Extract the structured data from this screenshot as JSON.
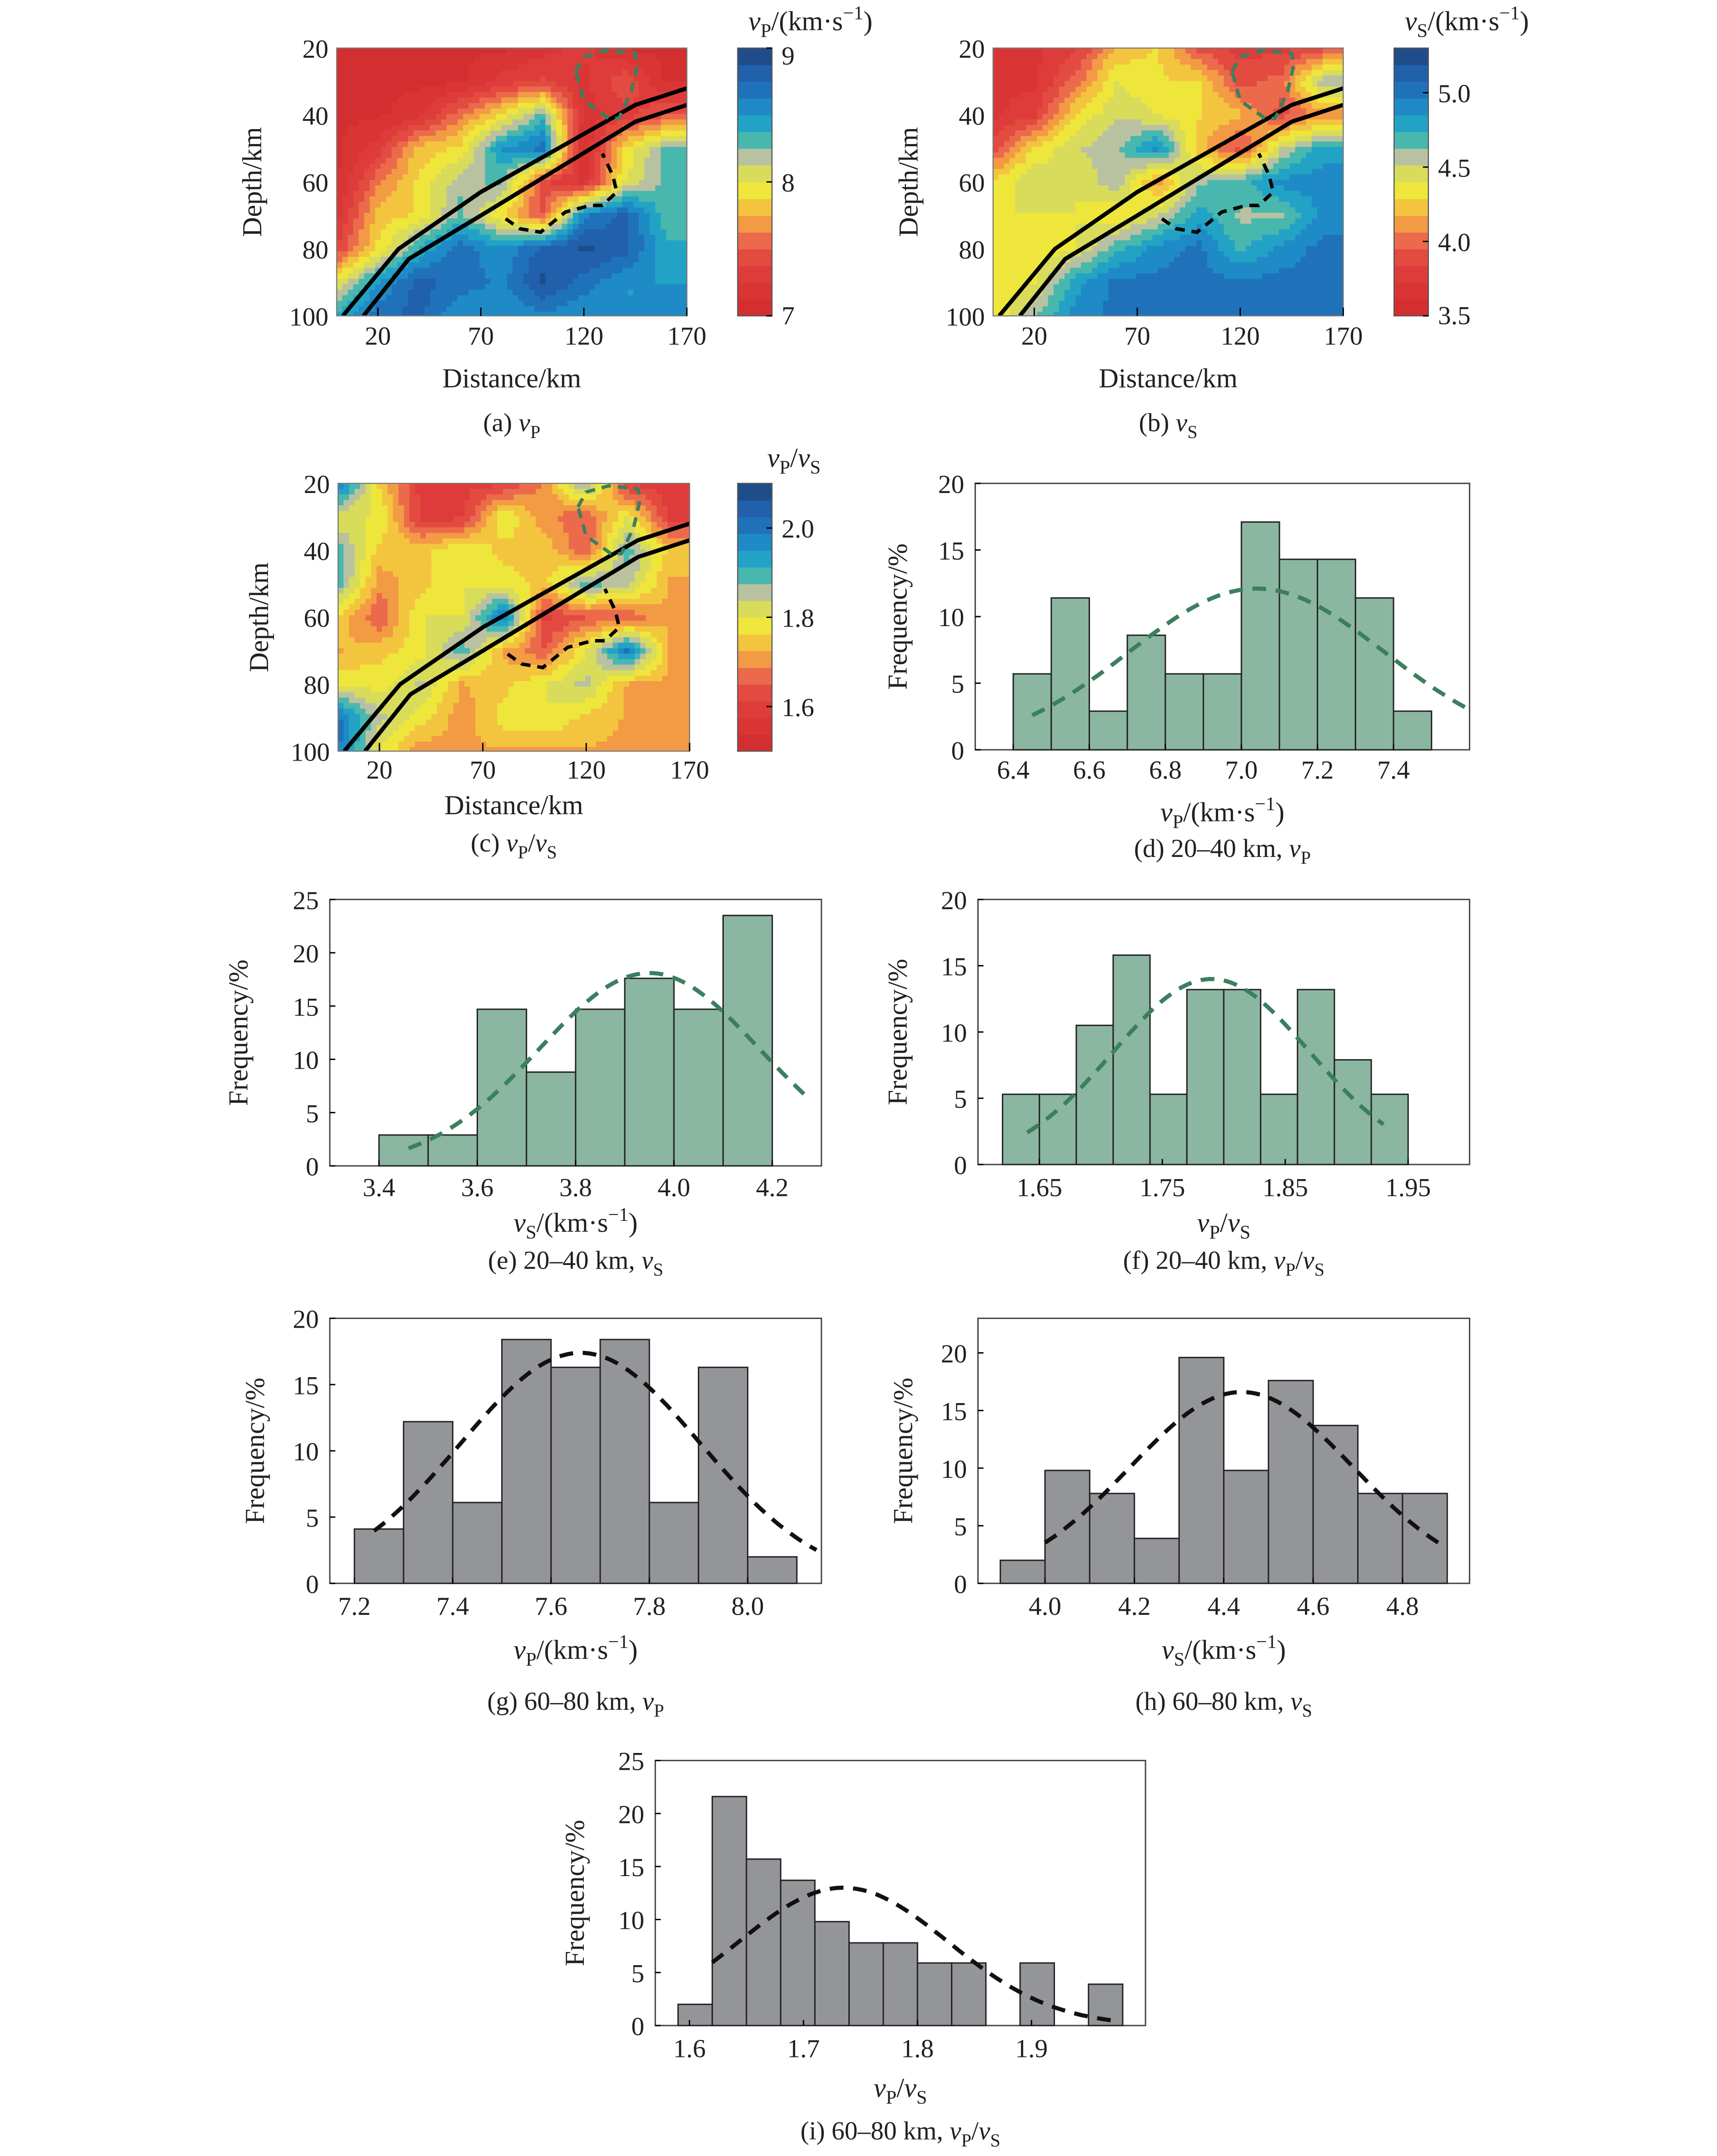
{
  "colors": {
    "bar_green": "#8bb6a1",
    "bar_grey": "#939598",
    "curve_green": "#3b7f5e",
    "curve_black": "#111111",
    "bar_edge": "#222222",
    "colormap": [
      "#d42f30",
      "#d93535",
      "#de3c3b",
      "#e34a40",
      "#ec6a4c",
      "#f39a44",
      "#f3c53f",
      "#efe63c",
      "#d8dc5a",
      "#b9c2a0",
      "#48b8ae",
      "#22a3c6",
      "#1f8bc6",
      "#1f72ba",
      "#2160ab",
      "#1f4d8a"
    ]
  },
  "chart_data": [
    {
      "type": "heatmap",
      "ylabel": "Depth/km",
      "xlabel": "Distance/km",
      "xlim": [
        0,
        170
      ],
      "ylim": [
        20,
        100
      ],
      "y_inverted": true,
      "xticks": [
        20,
        70,
        120,
        170
      ],
      "yticks": [
        20,
        40,
        60,
        80,
        100
      ],
      "colorbar": {
        "title": [
          [
            "v",
            "i"
          ],
          [
            "P",
            "sub"
          ],
          [
            "/(km·s",
            ""
          ],
          [
            "−1",
            "sup"
          ],
          [
            ")",
            ""
          ]
        ],
        "range": [
          7,
          9
        ],
        "ticks": [
          "7",
          "8",
          "9"
        ],
        "tick_values": [
          7,
          8,
          9
        ]
      },
      "caption": [
        [
          "(a) ",
          ""
        ],
        [
          "v",
          "i"
        ],
        [
          "P",
          "sub"
        ]
      ],
      "grid_x": [
        0,
        20,
        40,
        60,
        80,
        100,
        120,
        140,
        160
      ],
      "grid_depth": [
        20,
        30,
        40,
        50,
        60,
        70,
        80,
        90,
        100
      ],
      "values": [
        [
          7.1,
          7.1,
          7.1,
          7.1,
          7.1,
          7.2,
          7.3,
          7.1,
          7.1
        ],
        [
          7.1,
          7.1,
          7.1,
          7.1,
          7.3,
          7.4,
          7.2,
          7.5,
          7.1
        ],
        [
          7.1,
          7.1,
          7.2,
          7.6,
          7.9,
          8.3,
          7.2,
          7.3,
          7.5
        ],
        [
          7.1,
          7.3,
          7.8,
          7.9,
          8.5,
          8.7,
          7.1,
          7.9,
          8.3
        ],
        [
          7.1,
          7.6,
          7.9,
          8.2,
          8.3,
          7.4,
          7.2,
          8.0,
          8.3
        ],
        [
          7.2,
          7.8,
          7.9,
          8.3,
          7.9,
          7.5,
          8.6,
          8.8,
          8.3
        ],
        [
          7.4,
          7.9,
          8.4,
          8.7,
          8.5,
          8.8,
          8.9,
          8.8,
          8.4
        ],
        [
          8.0,
          8.5,
          8.8,
          8.7,
          8.6,
          8.9,
          8.7,
          8.5,
          8.5
        ],
        [
          8.4,
          8.7,
          8.8,
          8.5,
          8.5,
          8.6,
          8.5,
          8.5,
          8.5
        ]
      ]
    },
    {
      "type": "heatmap",
      "ylabel": "Depth/km",
      "xlabel": "Distance/km",
      "xlim": [
        0,
        170
      ],
      "ylim": [
        20,
        100
      ],
      "y_inverted": true,
      "xticks": [
        20,
        70,
        120,
        170
      ],
      "yticks": [
        20,
        40,
        60,
        80,
        100
      ],
      "colorbar": {
        "title": [
          [
            "v",
            "i"
          ],
          [
            "S",
            "sub"
          ],
          [
            "/(km·s",
            ""
          ],
          [
            "−1",
            "sup"
          ],
          [
            ")",
            ""
          ]
        ],
        "range": [
          3.5,
          5.3
        ],
        "ticks": [
          "3.5",
          "4.0",
          "4.5",
          "5.0"
        ],
        "tick_values": [
          3.5,
          4.0,
          4.5,
          5.0
        ]
      },
      "caption": [
        [
          "(b) ",
          ""
        ],
        [
          "v",
          "i"
        ],
        [
          "S",
          "sub"
        ]
      ],
      "grid_x": [
        0,
        20,
        40,
        60,
        80,
        100,
        120,
        140,
        160
      ],
      "grid_depth": [
        20,
        30,
        40,
        50,
        60,
        70,
        80,
        90,
        100
      ],
      "values": [
        [
          3.7,
          3.7,
          3.8,
          4.2,
          4.3,
          3.9,
          3.8,
          3.8,
          3.9
        ],
        [
          3.7,
          3.7,
          4.0,
          4.4,
          4.3,
          4.3,
          3.9,
          4.0,
          4.6
        ],
        [
          3.7,
          3.8,
          4.3,
          4.5,
          4.4,
          4.3,
          4.2,
          3.9,
          4.1
        ],
        [
          3.9,
          4.3,
          4.5,
          4.6,
          4.9,
          4.2,
          3.9,
          4.5,
          4.8
        ],
        [
          4.3,
          4.5,
          4.4,
          4.6,
          4.1,
          4.6,
          4.7,
          4.9,
          4.9
        ],
        [
          4.4,
          4.4,
          4.4,
          4.3,
          4.5,
          4.8,
          4.6,
          4.6,
          4.9
        ],
        [
          4.4,
          4.3,
          4.4,
          4.7,
          4.9,
          5.0,
          4.7,
          4.9,
          5.0
        ],
        [
          4.3,
          4.4,
          4.8,
          5.0,
          5.0,
          5.0,
          5.0,
          5.0,
          5.0
        ],
        [
          4.3,
          4.6,
          4.9,
          5.0,
          5.0,
          5.0,
          5.0,
          5.0,
          5.0
        ]
      ]
    },
    {
      "type": "heatmap",
      "ylabel": "Depth/km",
      "xlabel": "Distance/km",
      "xlim": [
        0,
        170
      ],
      "ylim": [
        20,
        100
      ],
      "y_inverted": true,
      "xticks": [
        20,
        70,
        120,
        170
      ],
      "yticks": [
        20,
        40,
        60,
        80,
        100
      ],
      "colorbar": {
        "title": [
          [
            "v",
            "i"
          ],
          [
            "P",
            "sub"
          ],
          [
            "/",
            ""
          ],
          [
            "v",
            "i"
          ],
          [
            "S",
            "sub"
          ]
        ],
        "range": [
          1.5,
          2.1
        ],
        "ticks": [
          "1.6",
          "1.8",
          "2.0"
        ],
        "tick_values": [
          1.6,
          1.8,
          2.0
        ]
      },
      "caption": [
        [
          "(c) ",
          ""
        ],
        [
          "v",
          "i"
        ],
        [
          "P",
          "sub"
        ],
        [
          "/",
          ""
        ],
        [
          "v",
          "i"
        ],
        [
          "S",
          "sub"
        ]
      ],
      "grid_x": [
        0,
        20,
        40,
        60,
        80,
        100,
        120,
        140,
        160
      ],
      "grid_depth": [
        20,
        30,
        40,
        50,
        60,
        70,
        80,
        90,
        100
      ],
      "values": [
        [
          2.0,
          1.75,
          1.6,
          1.6,
          1.6,
          1.7,
          1.9,
          1.6,
          1.6
        ],
        [
          1.8,
          1.8,
          1.6,
          1.6,
          1.8,
          1.7,
          1.65,
          1.8,
          1.6
        ],
        [
          1.9,
          1.75,
          1.75,
          1.8,
          1.75,
          1.75,
          1.65,
          1.9,
          1.75
        ],
        [
          1.9,
          1.7,
          1.75,
          1.8,
          1.78,
          1.75,
          1.9,
          1.85,
          1.72
        ],
        [
          1.75,
          1.65,
          1.8,
          1.8,
          2.0,
          1.6,
          1.65,
          1.65,
          1.72
        ],
        [
          1.72,
          1.75,
          1.78,
          1.9,
          1.72,
          1.65,
          1.8,
          2.0,
          1.72
        ],
        [
          1.8,
          1.78,
          1.85,
          1.72,
          1.75,
          1.8,
          1.85,
          1.72,
          1.72
        ],
        [
          2.0,
          1.85,
          1.78,
          1.7,
          1.78,
          1.8,
          1.75,
          1.72,
          1.72
        ],
        [
          2.0,
          1.8,
          1.7,
          1.72,
          1.72,
          1.72,
          1.72,
          1.72,
          1.72
        ]
      ]
    },
    {
      "type": "bar",
      "histogram": true,
      "ylabel": "Frequency/%",
      "xlabel": [
        [
          "v",
          "i"
        ],
        [
          "P",
          "sub"
        ],
        [
          "/(km·s",
          ""
        ],
        [
          "−1",
          "sup"
        ],
        [
          ")",
          ""
        ]
      ],
      "caption": [
        [
          "(d) 20–40 km, ",
          ""
        ],
        [
          "v",
          "i"
        ],
        [
          "P",
          "sub"
        ]
      ],
      "bin_start": 6.4,
      "bin_width": 0.1,
      "values": [
        5.7,
        11.4,
        2.9,
        8.6,
        5.7,
        5.7,
        17.1,
        14.3,
        14.3,
        11.4,
        2.9
      ],
      "xlim": [
        6.3,
        7.6
      ],
      "ylim": [
        0,
        20
      ],
      "xticks": [
        "6.4",
        "6.6",
        "6.8",
        "7.0",
        "7.2",
        "7.4"
      ],
      "yticks": [
        "0",
        "5",
        "10",
        "15",
        "20"
      ],
      "fit": {
        "type": "normal",
        "mean": 7.04,
        "sd": 0.336,
        "peak": 12.1,
        "from": 6.45,
        "to": 7.6
      },
      "bar_color": "green"
    },
    {
      "type": "bar",
      "histogram": true,
      "ylabel": "Frequency/%",
      "xlabel": [
        [
          "v",
          "i"
        ],
        [
          "S",
          "sub"
        ],
        [
          "/(km·s",
          ""
        ],
        [
          "−1",
          "sup"
        ],
        [
          ")",
          ""
        ]
      ],
      "caption": [
        [
          "(e) 20–40 km, ",
          ""
        ],
        [
          "v",
          "i"
        ],
        [
          "S",
          "sub"
        ]
      ],
      "bin_start": 3.4,
      "bin_width": 0.1,
      "values": [
        2.9,
        2.9,
        14.7,
        8.8,
        14.7,
        17.6,
        14.7,
        23.5
      ],
      "xlim": [
        3.3,
        4.3
      ],
      "ylim": [
        0,
        25
      ],
      "xticks": [
        "3.4",
        "3.6",
        "3.8",
        "4.0",
        "4.2"
      ],
      "yticks": [
        "0",
        "5",
        "10",
        "15",
        "20",
        "25"
      ],
      "fit": {
        "type": "normal",
        "mean": 3.95,
        "sd": 0.224,
        "peak": 18.1,
        "from": 3.46,
        "to": 4.27
      },
      "bar_color": "green"
    },
    {
      "type": "bar",
      "histogram": true,
      "ylabel": "Frequency/%",
      "xlabel": [
        [
          "v",
          "i"
        ],
        [
          "P",
          "sub"
        ],
        [
          "/",
          ""
        ],
        [
          "v",
          "i"
        ],
        [
          "S",
          "sub"
        ]
      ],
      "caption": [
        [
          "(f) 20–40 km, ",
          ""
        ],
        [
          "v",
          "i"
        ],
        [
          "P",
          "sub"
        ],
        [
          "/",
          ""
        ],
        [
          "v",
          "i"
        ],
        [
          "S",
          "sub"
        ]
      ],
      "bin_start": 1.62,
      "bin_width": 0.03,
      "values": [
        5.3,
        5.3,
        10.5,
        15.8,
        5.3,
        13.2,
        13.2,
        5.3,
        13.2,
        7.9,
        5.3
      ],
      "xlim": [
        1.6,
        2.0
      ],
      "ylim": [
        0,
        20
      ],
      "xticks": [
        "1.65",
        "1.75",
        "1.85",
        "1.95"
      ],
      "yticks": [
        "0",
        "5",
        "10",
        "15",
        "20"
      ],
      "fit": {
        "type": "normal",
        "mean": 1.79,
        "sd": 0.08,
        "peak": 14.0,
        "from": 1.64,
        "to": 1.93
      },
      "bar_color": "green"
    },
    {
      "type": "bar",
      "histogram": true,
      "ylabel": "Frequency/%",
      "xlabel": [
        [
          "v",
          "i"
        ],
        [
          "P",
          "sub"
        ],
        [
          "/(km·s",
          ""
        ],
        [
          "−1",
          "sup"
        ],
        [
          ")",
          ""
        ]
      ],
      "caption": [
        [
          "(g) 60–80 km, ",
          ""
        ],
        [
          "v",
          "i"
        ],
        [
          "P",
          "sub"
        ]
      ],
      "bin_start": 7.2,
      "bin_width": 0.1,
      "values": [
        4.1,
        12.2,
        6.1,
        18.4,
        16.3,
        18.4,
        6.1,
        16.3,
        2.0
      ],
      "xlim": [
        7.15,
        8.15
      ],
      "ylim": [
        0,
        20
      ],
      "xticks": [
        "7.2",
        "7.4",
        "7.6",
        "7.8",
        "8.0"
      ],
      "yticks": [
        "0",
        "5",
        "10",
        "15",
        "20"
      ],
      "fit": {
        "type": "normal",
        "mean": 7.66,
        "sd": 0.244,
        "peak": 17.4,
        "from": 7.24,
        "to": 8.14
      },
      "bar_color": "grey"
    },
    {
      "type": "bar",
      "histogram": true,
      "ylabel": "Frequency/%",
      "xlabel": [
        [
          "v",
          "i"
        ],
        [
          "S",
          "sub"
        ],
        [
          "/(km·s",
          ""
        ],
        [
          "−1",
          "sup"
        ],
        [
          ")",
          ""
        ]
      ],
      "caption": [
        [
          "(h) 60–80 km, ",
          ""
        ],
        [
          "v",
          "i"
        ],
        [
          "S",
          "sub"
        ]
      ],
      "bin_start": 3.9,
      "bin_width": 0.1,
      "values": [
        2.0,
        9.8,
        7.8,
        3.9,
        19.6,
        9.8,
        17.6,
        13.7,
        7.8,
        7.8
      ],
      "xlim": [
        3.85,
        4.95
      ],
      "ylim": [
        0,
        23
      ],
      "xticks": [
        "4.0",
        "4.2",
        "4.4",
        "4.6",
        "4.8"
      ],
      "yticks": [
        "0",
        "5",
        "10",
        "15",
        "20"
      ],
      "fit": {
        "type": "normal",
        "mean": 4.44,
        "sd": 0.25,
        "peak": 16.6,
        "from": 4.0,
        "to": 4.88
      },
      "bar_color": "grey"
    },
    {
      "type": "bar",
      "histogram": true,
      "ylabel": "Frequency/%",
      "xlabel": [
        [
          "v",
          "i"
        ],
        [
          "P",
          "sub"
        ],
        [
          "/",
          ""
        ],
        [
          "v",
          "i"
        ],
        [
          "S",
          "sub"
        ]
      ],
      "caption": [
        [
          "(i) 60–80 km, ",
          ""
        ],
        [
          "v",
          "i"
        ],
        [
          "P",
          "sub"
        ],
        [
          "/",
          ""
        ],
        [
          "v",
          "i"
        ],
        [
          "S",
          "sub"
        ]
      ],
      "bin_start": 1.59,
      "bin_width": 0.03,
      "values": [
        2.0,
        21.6,
        15.7,
        13.7,
        9.8,
        7.8,
        7.8,
        5.9,
        5.9,
        0,
        5.9,
        0,
        3.9
      ],
      "xlim": [
        1.57,
        2.0
      ],
      "ylim": [
        0,
        25
      ],
      "xticks": [
        "1.6",
        "1.7",
        "1.8",
        "1.9"
      ],
      "yticks": [
        "0",
        "5",
        "10",
        "15",
        "20",
        "25"
      ],
      "fit": {
        "type": "normal",
        "mean": 1.735,
        "sd": 0.092,
        "peak": 13.0,
        "from": 1.62,
        "to": 1.97
      },
      "bar_color": "grey"
    }
  ],
  "overlays": {
    "slab_top": [
      [
        3,
        100
      ],
      [
        30,
        80
      ],
      [
        70,
        63
      ],
      [
        145,
        37
      ],
      [
        170,
        32
      ]
    ],
    "slab_bottom": [
      [
        13,
        100
      ],
      [
        35,
        83
      ],
      [
        70,
        70
      ],
      [
        145,
        42
      ],
      [
        170,
        37
      ]
    ],
    "dashed_black": [
      [
        82,
        71
      ],
      [
        89,
        74
      ],
      [
        99,
        75
      ],
      [
        111,
        69
      ],
      [
        123,
        67
      ],
      [
        129,
        67
      ],
      [
        136,
        63
      ],
      [
        134,
        58
      ],
      [
        129,
        51.5
      ]
    ],
    "dashed_green": [
      [
        116,
        27
      ],
      [
        120,
        22.6
      ],
      [
        131,
        20.7
      ],
      [
        145,
        21.7
      ],
      [
        146,
        25
      ],
      [
        143,
        33
      ],
      [
        137,
        41
      ],
      [
        132,
        41
      ],
      [
        120,
        35.7
      ],
      [
        116,
        27
      ]
    ]
  }
}
